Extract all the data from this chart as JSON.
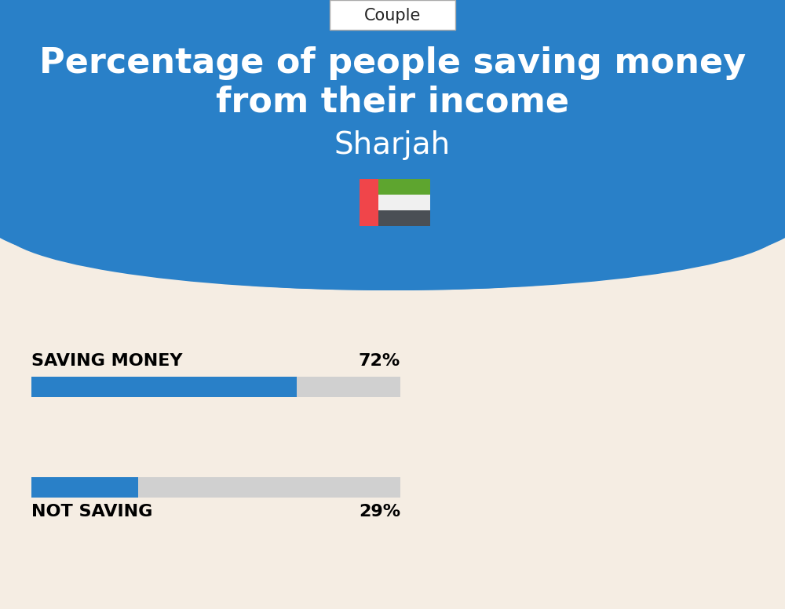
{
  "title_line1": "Percentage of people saving money",
  "title_line2": "from their income",
  "subtitle": "Sharjah",
  "tab_label": "Couple",
  "bg_top_color": "#2980C8",
  "bg_bottom_color": "#F5EDE3",
  "title_color": "#FFFFFF",
  "subtitle_color": "#FFFFFF",
  "bar1_label": "SAVING MONEY",
  "bar1_value": 72,
  "bar1_pct": "72%",
  "bar2_label": "NOT SAVING",
  "bar2_value": 29,
  "bar2_pct": "29%",
  "bar_filled_color": "#2980C8",
  "bar_bg_color": "#D0D0D0",
  "label_color": "#000000",
  "tab_color": "#FFFFFF",
  "tab_text_color": "#222222",
  "flag_red": "#F0454A",
  "flag_green": "#5EA52F",
  "flag_white": "#F0F0F0",
  "flag_dark": "#4A4F55"
}
